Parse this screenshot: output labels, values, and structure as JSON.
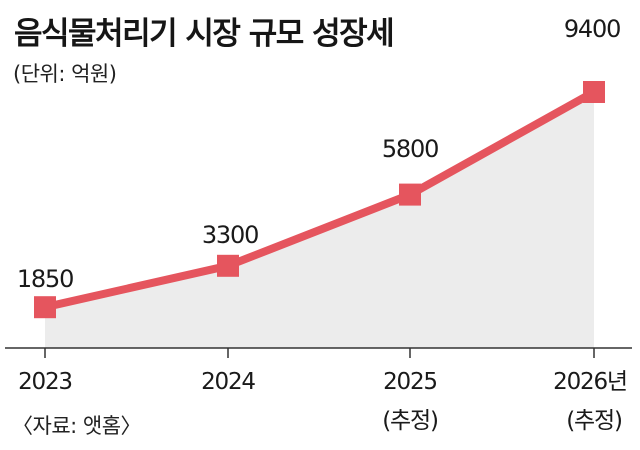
{
  "title": "음식물처리기 시장 규모 성장세",
  "unit_note": "(단위: 억원)",
  "source_note": "〈자료: 앳홈〉",
  "colors": {
    "line": "#e5555e",
    "marker": "#e5555e",
    "area": "#ececec",
    "axis": "#333333"
  },
  "chart_data": {
    "type": "area",
    "categories": [
      "2023",
      "2024",
      "2025",
      "2026년"
    ],
    "sublabels": [
      "",
      "",
      "(추정)",
      "(추정)"
    ],
    "values": [
      1850,
      3300,
      5800,
      9400
    ],
    "data_labels": [
      "1850",
      "3300",
      "5800",
      "9400"
    ],
    "title": "음식물처리기 시장 규모 성장세",
    "ylabel": "",
    "xlabel": "",
    "grid": false,
    "legend": "none"
  }
}
